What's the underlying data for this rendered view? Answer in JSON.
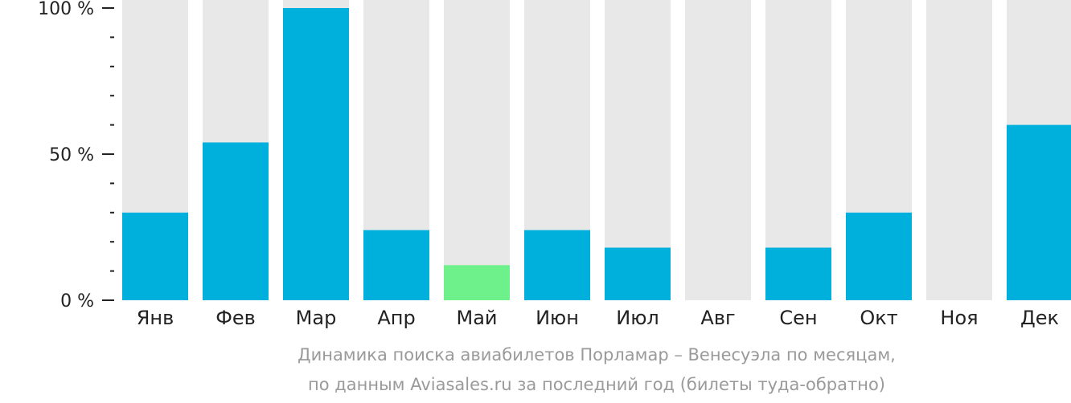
{
  "chart_data": {
    "type": "bar",
    "categories": [
      "Янв",
      "Фев",
      "Мар",
      "Апр",
      "Май",
      "Июн",
      "Июл",
      "Авг",
      "Сен",
      "Окт",
      "Ноя",
      "Дек"
    ],
    "values": [
      30,
      54,
      100,
      24,
      12,
      24,
      18,
      0,
      18,
      30,
      0,
      60
    ],
    "highlight_index": 4,
    "ylim": [
      0,
      100
    ],
    "yticks": [
      {
        "value": 0,
        "label": "0 %"
      },
      {
        "value": 50,
        "label": "50 %"
      },
      {
        "value": 100,
        "label": "100 %"
      }
    ],
    "minor_ticks": [
      10,
      20,
      30,
      40,
      60,
      70,
      80,
      90
    ],
    "colors": {
      "bar": "#00b0dc",
      "highlight": "#6ef08a",
      "background_bar": "#e8e8e8",
      "axis": "#222222"
    },
    "caption": [
      "Динамика поиска авиабилетов Порламар – Венесуэла по месяцам,",
      "по данным Aviasales.ru за последний год (билеты туда-обратно)"
    ]
  }
}
